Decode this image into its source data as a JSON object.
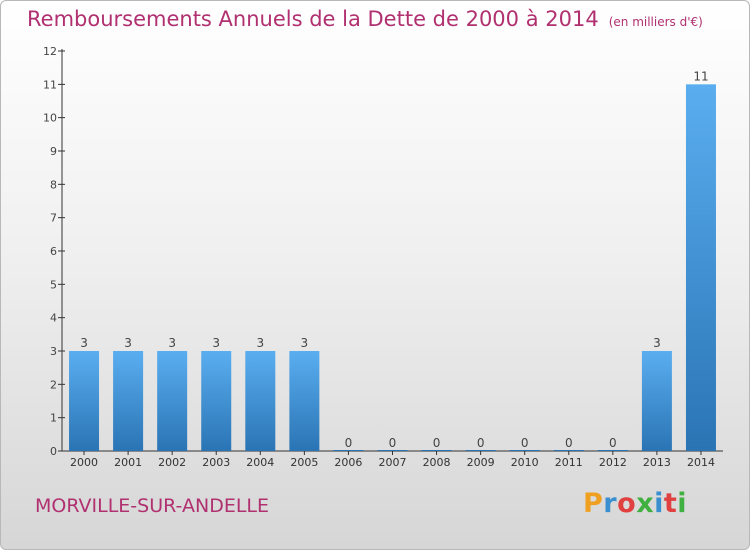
{
  "header": {
    "title": "Remboursements Annuels de la Dette de 2000 à 2014",
    "unit": "(en milliers d'€)"
  },
  "footer": {
    "commune": "MORVILLE-SUR-ANDELLE",
    "brand": "Proxiti"
  },
  "colors": {
    "title": "#b03070",
    "bar_light": "#5aaef0",
    "bar_dark": "#2a74b4",
    "axis": "#333333"
  },
  "chart_data": {
    "type": "bar",
    "title": "Remboursements Annuels de la Dette de 2000 à 2014",
    "categories": [
      "2000",
      "2001",
      "2002",
      "2003",
      "2004",
      "2005",
      "2006",
      "2007",
      "2008",
      "2009",
      "2010",
      "2011",
      "2012",
      "2013",
      "2014"
    ],
    "values": [
      3,
      3,
      3,
      3,
      3,
      3,
      0,
      0,
      0,
      0,
      0,
      0,
      0,
      3,
      11
    ],
    "value_labels": [
      "3",
      "3",
      "3",
      "3",
      "3",
      "3",
      "0",
      "0",
      "0",
      "0",
      "0",
      "0",
      "0",
      "3",
      "11"
    ],
    "ylim": [
      0,
      12
    ],
    "yticks": [
      0,
      1,
      2,
      3,
      4,
      5,
      6,
      7,
      8,
      9,
      10,
      11,
      12
    ],
    "grid": false
  }
}
